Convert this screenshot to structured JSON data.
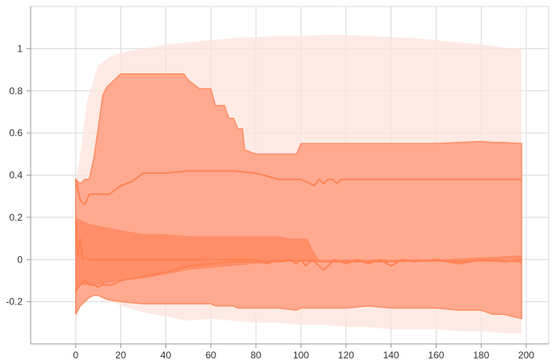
{
  "chart_data": {
    "type": "area",
    "title": "",
    "xlabel": "",
    "ylabel": "",
    "xlim": [
      -20,
      210
    ],
    "ylim": [
      -0.4,
      1.2
    ],
    "grid": true,
    "legend": "none",
    "x_ticks": [
      0,
      20,
      40,
      60,
      80,
      100,
      120,
      140,
      160,
      180,
      200
    ],
    "x_tick_labels": [
      "0",
      "20",
      "40",
      "60",
      "80",
      "100",
      "120",
      "140",
      "160",
      "180",
      "200"
    ],
    "y_ticks": [
      -0.2,
      0,
      0.2,
      0.4,
      0.6,
      0.8,
      1
    ],
    "y_tick_labels": [
      "-0.2",
      "0",
      "0.2",
      "0.4",
      "0.6",
      "0.8",
      "1"
    ],
    "colors": {
      "outer_band": "#fde3dc",
      "quantile_band": "#ffa78b",
      "inner_band": "#ff8a63",
      "line": "#ff7f50"
    },
    "bands": [
      {
        "id": "outer",
        "x": [
          0,
          2,
          5,
          10,
          15,
          20,
          30,
          40,
          50,
          60,
          70,
          80,
          90,
          100,
          110,
          120,
          130,
          140,
          150,
          160,
          170,
          180,
          190,
          198
        ],
        "upper": [
          0.35,
          0.5,
          0.75,
          0.92,
          0.96,
          0.98,
          1.0,
          1.02,
          1.03,
          1.04,
          1.05,
          1.055,
          1.06,
          1.06,
          1.065,
          1.065,
          1.06,
          1.055,
          1.05,
          1.04,
          1.03,
          1.02,
          1.005,
          1.0
        ],
        "lower": [
          -0.3,
          -0.22,
          -0.18,
          -0.17,
          -0.19,
          -0.22,
          -0.25,
          -0.27,
          -0.29,
          -0.28,
          -0.29,
          -0.3,
          -0.3,
          -0.31,
          -0.31,
          -0.32,
          -0.32,
          -0.33,
          -0.33,
          -0.33,
          -0.34,
          -0.34,
          -0.35,
          -0.35
        ]
      },
      {
        "id": "quantile",
        "x": [
          0,
          2,
          4,
          6,
          8,
          10,
          12,
          14,
          20,
          30,
          40,
          48,
          50,
          55,
          60,
          62,
          66,
          68,
          70,
          72,
          74,
          75,
          80,
          90,
          98,
          100,
          110,
          120,
          130,
          140,
          150,
          160,
          170,
          180,
          185,
          190,
          198
        ],
        "upper": [
          0.38,
          0.36,
          0.38,
          0.38,
          0.48,
          0.62,
          0.78,
          0.82,
          0.88,
          0.88,
          0.88,
          0.88,
          0.85,
          0.81,
          0.81,
          0.73,
          0.73,
          0.67,
          0.67,
          0.62,
          0.62,
          0.52,
          0.5,
          0.5,
          0.5,
          0.55,
          0.55,
          0.55,
          0.55,
          0.55,
          0.55,
          0.55,
          0.555,
          0.56,
          0.555,
          0.555,
          0.55
        ],
        "lower": [
          -0.26,
          -0.22,
          -0.2,
          -0.18,
          -0.17,
          -0.17,
          -0.18,
          -0.19,
          -0.2,
          -0.21,
          -0.21,
          -0.21,
          -0.21,
          -0.21,
          -0.21,
          -0.22,
          -0.22,
          -0.22,
          -0.22,
          -0.23,
          -0.23,
          -0.23,
          -0.23,
          -0.23,
          -0.24,
          -0.23,
          -0.23,
          -0.23,
          -0.22,
          -0.23,
          -0.23,
          -0.23,
          -0.24,
          -0.24,
          -0.26,
          -0.26,
          -0.28
        ]
      },
      {
        "id": "inner",
        "x": [
          0,
          2,
          4,
          6,
          10,
          15,
          20,
          30,
          40,
          50,
          60,
          70,
          80,
          90,
          95,
          100,
          103,
          105,
          108,
          110,
          120,
          130,
          140,
          150,
          160,
          170,
          180,
          190,
          198
        ],
        "upper": [
          0.2,
          0.19,
          0.18,
          0.17,
          0.16,
          0.15,
          0.14,
          0.12,
          0.12,
          0.11,
          0.11,
          0.11,
          0.11,
          0.11,
          0.1,
          0.1,
          0.1,
          0.05,
          0.0,
          0.0,
          0.0,
          0.0,
          0.0,
          0.0,
          0.0,
          0.005,
          0.01,
          0.015,
          0.02
        ],
        "lower": [
          -0.15,
          -0.12,
          -0.12,
          -0.12,
          -0.12,
          -0.11,
          -0.1,
          -0.09,
          -0.07,
          -0.05,
          -0.04,
          -0.03,
          -0.02,
          -0.015,
          -0.01,
          -0.01,
          -0.01,
          -0.01,
          -0.01,
          -0.01,
          -0.01,
          -0.01,
          -0.01,
          -0.01,
          -0.01,
          -0.01,
          -0.005,
          0.0,
          0.0
        ]
      }
    ],
    "series": [
      {
        "id": "upper-quantile-line",
        "x": [
          0,
          2,
          4,
          6,
          10,
          15,
          20,
          25,
          30,
          40,
          50,
          60,
          70,
          80,
          90,
          100,
          106,
          108,
          110,
          112,
          114,
          116,
          118,
          120,
          130,
          140,
          150,
          160,
          170,
          180,
          190,
          198
        ],
        "y": [
          0.38,
          0.28,
          0.26,
          0.31,
          0.31,
          0.31,
          0.35,
          0.37,
          0.41,
          0.41,
          0.42,
          0.42,
          0.42,
          0.41,
          0.38,
          0.38,
          0.35,
          0.38,
          0.36,
          0.38,
          0.38,
          0.36,
          0.38,
          0.38,
          0.38,
          0.38,
          0.38,
          0.38,
          0.38,
          0.38,
          0.38,
          0.38
        ]
      },
      {
        "id": "median-line",
        "x": [
          0,
          1,
          2,
          3,
          4,
          6,
          10,
          20,
          40,
          60,
          80,
          85,
          88,
          90,
          95,
          98,
          100,
          102,
          105,
          110,
          115,
          120,
          125,
          130,
          135,
          140,
          145,
          150,
          160,
          170,
          180,
          190,
          198
        ],
        "y": [
          0.18,
          0.02,
          0.1,
          0.0,
          0.01,
          0.0,
          0.0,
          0.0,
          0.0,
          0.0,
          0.0,
          -0.02,
          0.0,
          -0.01,
          0.0,
          -0.02,
          0.0,
          -0.03,
          0.0,
          -0.05,
          0.0,
          -0.02,
          0.0,
          -0.02,
          0.0,
          -0.03,
          0.0,
          -0.01,
          0.0,
          -0.02,
          0.0,
          -0.01,
          0.0
        ]
      },
      {
        "id": "lower-quantile-line",
        "x": [
          0,
          2,
          4,
          6,
          8,
          10,
          12,
          16,
          20,
          30,
          40,
          50,
          60,
          70,
          80,
          90,
          100,
          110,
          120,
          130,
          140,
          150,
          160,
          170,
          180,
          190,
          198
        ],
        "y": [
          -0.15,
          -0.12,
          -0.1,
          -0.12,
          -0.12,
          -0.13,
          -0.12,
          -0.12,
          -0.1,
          -0.08,
          -0.06,
          -0.03,
          -0.02,
          -0.01,
          -0.01,
          -0.005,
          -0.005,
          -0.01,
          -0.01,
          -0.01,
          -0.01,
          -0.005,
          -0.005,
          -0.01,
          -0.005,
          -0.005,
          -0.01
        ]
      }
    ]
  }
}
